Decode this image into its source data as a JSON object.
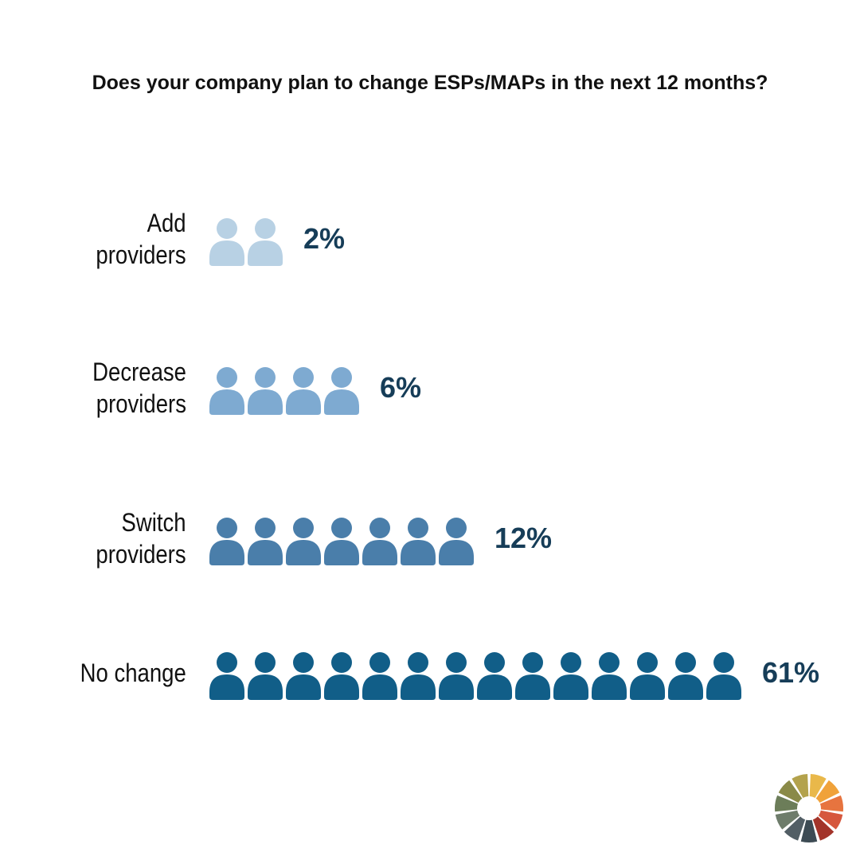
{
  "title": "Does your company plan to change ESPs/MAPs in the next 12 months?",
  "chart_data": {
    "type": "pictograph",
    "title": "Does your company plan to change ESPs/MAPs in the next 12 months?",
    "categories": [
      [
        "Add",
        "providers"
      ],
      [
        "Decrease",
        "providers"
      ],
      [
        "Switch",
        "providers"
      ],
      [
        "No change"
      ]
    ],
    "values": [
      2,
      6,
      12,
      61
    ],
    "value_labels": [
      "2%",
      "6%",
      "12%",
      "61%"
    ],
    "icon_counts": [
      2,
      4,
      7,
      14
    ],
    "icon": "person-icon",
    "colors": [
      "#b8d1e4",
      "#7eaad1",
      "#4a7eaa",
      "#115e88"
    ],
    "value_label_color": "#163d58"
  },
  "logo": {
    "icon": "color-wheel-logo-icon",
    "colors": [
      "#e9b84a",
      "#f0a23a",
      "#e7743f",
      "#d6573d",
      "#a3342a",
      "#3d4b54",
      "#525e65",
      "#6e7c6b",
      "#6c7d59",
      "#8a8a48",
      "#b3a24c"
    ]
  }
}
